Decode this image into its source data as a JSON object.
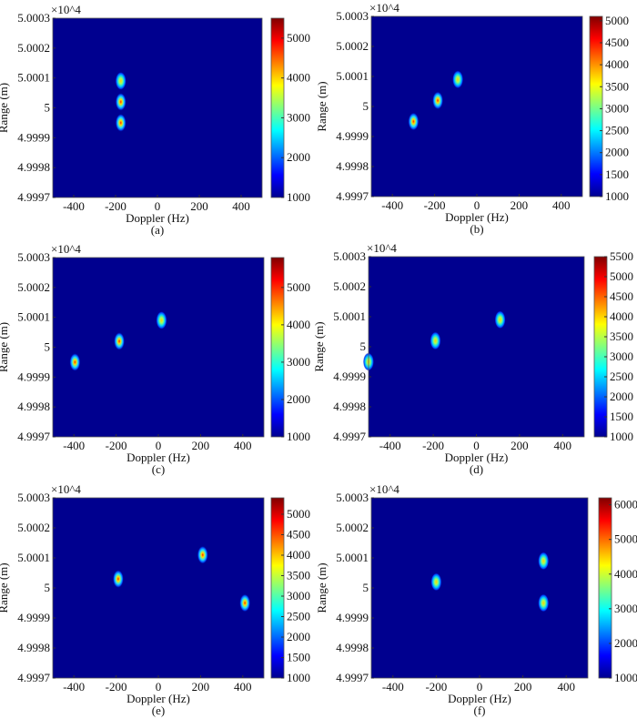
{
  "chart_data": [
    {
      "type": "heatmap",
      "caption": "(a)",
      "xlabel": "Doppler (Hz)",
      "ylabel": "Range (m)",
      "y_multiplier": "×10^4",
      "xlim": [
        -500,
        500
      ],
      "ylim": [
        4.9997,
        5.0003
      ],
      "xticks": [
        -400,
        -200,
        0,
        200,
        400
      ],
      "yticks": [
        "5.0003",
        "5.0002",
        "5.0001",
        "5",
        "4.9999",
        "4.9998",
        "4.9997"
      ],
      "colorbar": {
        "range": [
          1000,
          5500
        ],
        "ticks": [
          1000,
          2000,
          3000,
          4000,
          5000
        ]
      },
      "peaks": [
        {
          "doppler": -175,
          "range": 5.00009,
          "intensity": 4300
        },
        {
          "doppler": -175,
          "range": 5.00002,
          "intensity": 5400
        },
        {
          "doppler": -175,
          "range": 4.99995,
          "intensity": 4800
        }
      ]
    },
    {
      "type": "heatmap",
      "caption": "(b)",
      "xlabel": "Doppler (Hz)",
      "ylabel": "Range (m)",
      "y_multiplier": "×10^4",
      "xlim": [
        -500,
        500
      ],
      "ylim": [
        4.9997,
        5.0003
      ],
      "xticks": [
        -400,
        -200,
        0,
        200,
        400
      ],
      "yticks": [
        "5.0003",
        "5.0002",
        "5.0001",
        "5",
        "4.9999",
        "4.9998",
        "4.9997"
      ],
      "colorbar": {
        "range": [
          1000,
          5100
        ],
        "ticks": [
          1000,
          1500,
          2000,
          2500,
          3000,
          3500,
          4000,
          4500,
          5000
        ]
      },
      "peaks": [
        {
          "doppler": -90,
          "range": 5.00009,
          "intensity": 4300
        },
        {
          "doppler": -185,
          "range": 5.00002,
          "intensity": 5000
        },
        {
          "doppler": -300,
          "range": 4.99995,
          "intensity": 4500
        }
      ]
    },
    {
      "type": "heatmap",
      "caption": "(c)",
      "xlabel": "Doppler (Hz)",
      "ylabel": "Range (m)",
      "y_multiplier": "×10^4",
      "xlim": [
        -500,
        500
      ],
      "ylim": [
        4.9997,
        5.0003
      ],
      "xticks": [
        -400,
        -200,
        0,
        200,
        400
      ],
      "yticks": [
        "5.0003",
        "5.0002",
        "5.0001",
        "5",
        "4.9999",
        "4.9998",
        "4.9997"
      ],
      "colorbar": {
        "range": [
          1000,
          5800
        ],
        "ticks": [
          1000,
          2000,
          3000,
          4000,
          5000
        ]
      },
      "peaks": [
        {
          "doppler": 15,
          "range": 5.00009,
          "intensity": 3800
        },
        {
          "doppler": -185,
          "range": 5.00002,
          "intensity": 4400
        },
        {
          "doppler": -395,
          "range": 4.99995,
          "intensity": 4800
        }
      ]
    },
    {
      "type": "heatmap",
      "caption": "(d)",
      "xlabel": "Doppler (Hz)",
      "ylabel": "Range (m)",
      "y_multiplier": "×10^4",
      "xlim": [
        -500,
        500
      ],
      "ylim": [
        4.9997,
        5.0003
      ],
      "xticks": [
        -400,
        -200,
        0,
        200,
        400
      ],
      "yticks": [
        "5.0003",
        "5.0002",
        "5.0001",
        "5",
        "4.9999",
        "4.9998",
        "4.9997"
      ],
      "colorbar": {
        "range": [
          1000,
          5500
        ],
        "ticks": [
          1000,
          1500,
          2000,
          2500,
          3000,
          3500,
          4000,
          4500,
          5000,
          5500
        ]
      },
      "peaks": [
        {
          "doppler": 110,
          "range": 5.00009,
          "intensity": 3800
        },
        {
          "doppler": -190,
          "range": 5.00002,
          "intensity": 3800
        },
        {
          "doppler": -500,
          "range": 4.99995,
          "intensity": 3000
        }
      ]
    },
    {
      "type": "heatmap",
      "caption": "(e)",
      "xlabel": "Doppler (Hz)",
      "ylabel": "Range (m)",
      "y_multiplier": "×10^4",
      "xlim": [
        -500,
        500
      ],
      "ylim": [
        4.9997,
        5.0003
      ],
      "xticks": [
        -400,
        -200,
        0,
        200,
        400
      ],
      "yticks": [
        "5.0003",
        "5.0002",
        "5.0001",
        "5",
        "4.9999",
        "4.9998",
        "4.9997"
      ],
      "colorbar": {
        "range": [
          1000,
          5400
        ],
        "ticks": [
          1000,
          1500,
          2000,
          2500,
          3000,
          3500,
          4000,
          4500,
          5000
        ]
      },
      "peaks": [
        {
          "doppler": 210,
          "range": 5.00011,
          "intensity": 4600
        },
        {
          "doppler": -190,
          "range": 5.00003,
          "intensity": 5200
        },
        {
          "doppler": 410,
          "range": 4.99995,
          "intensity": 4800
        }
      ]
    },
    {
      "type": "heatmap",
      "caption": "(f)",
      "xlabel": "Doppler (Hz)",
      "ylabel": "Range (m)",
      "y_multiplier": "×10^4",
      "xlim": [
        -500,
        500
      ],
      "ylim": [
        4.9997,
        5.0003
      ],
      "xticks": [
        -400,
        -200,
        0,
        200,
        400
      ],
      "yticks": [
        "5.0003",
        "5.0002",
        "5.0001",
        "5",
        "4.9999",
        "4.9998",
        "4.9997"
      ],
      "colorbar": {
        "range": [
          1000,
          6200
        ],
        "ticks": [
          1000,
          2000,
          3000,
          4000,
          5000,
          6000
        ]
      },
      "peaks": [
        {
          "doppler": -200,
          "range": 5.00002,
          "intensity": 4200
        },
        {
          "doppler": 295,
          "range": 5.00009,
          "intensity": 4000
        },
        {
          "doppler": 295,
          "range": 4.99995,
          "intensity": 4200
        }
      ]
    }
  ]
}
